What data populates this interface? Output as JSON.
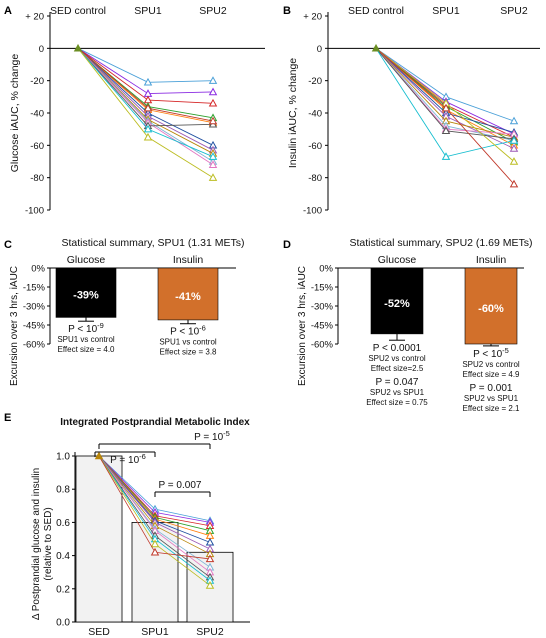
{
  "colors": {
    "glucose_bar": "#000000",
    "insulin_bar": "#d2702b",
    "sed_bar": "#f2f2f2",
    "axis": "#000000",
    "line_palette": [
      "#4aa0d8",
      "#8a2be2",
      "#d62728",
      "#2ca02c",
      "#ff7f0e",
      "#1f4fa0",
      "#9b59b6",
      "#b8860b",
      "#7fb3d5",
      "#e377c2",
      "#555555",
      "#17becf",
      "#bcbd22",
      "#c0392b"
    ]
  },
  "panels": {
    "A": {
      "letter": "A"
    },
    "B": {
      "letter": "B"
    },
    "C": {
      "letter": "C"
    },
    "D": {
      "letter": "D"
    },
    "E": {
      "letter": "E"
    }
  },
  "chart_data": [
    {
      "id": "A",
      "type": "line",
      "ylabel": "Glucose iAUC, % change",
      "categories": [
        "SED control",
        "SPU1",
        "SPU2"
      ],
      "ylim": [
        -100,
        20
      ],
      "yticks": [
        20,
        0,
        -20,
        -40,
        -60,
        -80,
        -100
      ],
      "ytick_labels": [
        "+ 20",
        "0",
        "-20",
        "-40",
        "-60",
        "-80",
        "-100"
      ],
      "series": [
        {
          "values": [
            0,
            -21,
            -20
          ]
        },
        {
          "values": [
            0,
            -28,
            -27
          ]
        },
        {
          "values": [
            0,
            -32,
            -34
          ]
        },
        {
          "values": [
            0,
            -36,
            -43
          ]
        },
        {
          "values": [
            0,
            -38,
            -46
          ]
        },
        {
          "values": [
            0,
            -40,
            -60
          ]
        },
        {
          "values": [
            0,
            -42,
            -63
          ]
        },
        {
          "values": [
            0,
            -44,
            -65
          ]
        },
        {
          "values": [
            0,
            -45,
            -70
          ]
        },
        {
          "values": [
            0,
            -46,
            -72
          ]
        },
        {
          "values": [
            0,
            -48,
            -47
          ]
        },
        {
          "values": [
            0,
            -50,
            -67
          ]
        },
        {
          "values": [
            0,
            -55,
            -80
          ]
        },
        {
          "values": [
            0,
            -37,
            -45
          ]
        }
      ]
    },
    {
      "id": "B",
      "type": "line",
      "ylabel": "Insulin iAUC, % change",
      "categories": [
        "SED control",
        "SPU1",
        "SPU2"
      ],
      "ylim": [
        -100,
        20
      ],
      "yticks": [
        20,
        0,
        -20,
        -40,
        -60,
        -80,
        -100
      ],
      "ytick_labels": [
        "+ 20",
        "0",
        "-20",
        "-40",
        "-60",
        "-80",
        "-100"
      ],
      "series": [
        {
          "values": [
            0,
            -30,
            -45
          ]
        },
        {
          "values": [
            0,
            -33,
            -53
          ]
        },
        {
          "values": [
            0,
            -35,
            -55
          ]
        },
        {
          "values": [
            0,
            -36,
            -58
          ]
        },
        {
          "values": [
            0,
            -38,
            -60
          ]
        },
        {
          "values": [
            0,
            -40,
            -52
          ]
        },
        {
          "values": [
            0,
            -42,
            -62
          ]
        },
        {
          "values": [
            0,
            -45,
            -55
          ]
        },
        {
          "values": [
            0,
            -48,
            -57
          ]
        },
        {
          "values": [
            0,
            -50,
            -53
          ]
        },
        {
          "values": [
            0,
            -51,
            -56
          ]
        },
        {
          "values": [
            0,
            -67,
            -57
          ]
        },
        {
          "values": [
            0,
            -34,
            -70
          ]
        },
        {
          "values": [
            0,
            -37,
            -84
          ]
        }
      ]
    },
    {
      "id": "C",
      "type": "bar",
      "title": "Statistical summary, SPU1 (1.31 METs)",
      "ylabel": "Excursion over 3 hrs, iAUC",
      "ylim": [
        -60,
        0
      ],
      "yticks": [
        0,
        -15,
        -30,
        -45,
        -60
      ],
      "ytick_labels": [
        "0%",
        "-15%",
        "-30%",
        "-45%",
        "-60%"
      ],
      "categories": [
        "Glucose",
        "Insulin"
      ],
      "values": [
        -39,
        -41
      ],
      "errors": [
        3,
        3
      ],
      "bar_labels": [
        "-39%",
        "-41%"
      ],
      "stats": [
        [
          "P < 10",
          "-9",
          "SPU1 vs control",
          "Effect size = 4.0"
        ],
        [
          "P < 10",
          "-6",
          "SPU1 vs control",
          "Effect size = 3.8"
        ]
      ]
    },
    {
      "id": "D",
      "type": "bar",
      "title": "Statistical summary, SPU2 (1.69 METs)",
      "ylabel": "Excursion over 3 hrs, iAUC",
      "ylim": [
        -60,
        0
      ],
      "yticks": [
        0,
        -15,
        -30,
        -45,
        -60
      ],
      "ytick_labels": [
        "0%",
        "-15%",
        "-30%",
        "-45%",
        "-60%"
      ],
      "categories": [
        "Glucose",
        "Insulin"
      ],
      "values": [
        -52,
        -60
      ],
      "errors": [
        5,
        1.5
      ],
      "bar_labels": [
        "-52%",
        "-60%"
      ],
      "stats": [
        [
          "P < 0.0001",
          "",
          "SPU2 vs control",
          "Effect size=2.5",
          "P = 0.047",
          "SPU2 vs SPU1",
          "Effect size = 0.75"
        ],
        [
          "P < 10",
          "-5",
          "SPU2 vs control",
          "Effect size = 4.9",
          "P = 0.001",
          "SPU2 vs SPU1",
          "Effect size = 2.1"
        ]
      ]
    },
    {
      "id": "E",
      "type": "bar",
      "title": "Integrated Postprandial Metabolic Index",
      "ylabel": "Δ Postprandial glucose and insulin",
      "ylabel2": "(relative to SED)",
      "categories": [
        "SED",
        "SPU1",
        "SPU2"
      ],
      "values": [
        1.0,
        0.6,
        0.42
      ],
      "ylim": [
        0,
        1.0
      ],
      "yticks": [
        0,
        0.2,
        0.4,
        0.6,
        0.8,
        1.0
      ],
      "ytick_labels": [
        "0.0",
        "0.2",
        "0.4",
        "0.6",
        "0.8",
        "1.0"
      ],
      "series": [
        {
          "values": [
            1.0,
            0.68,
            0.61
          ]
        },
        {
          "values": [
            1.0,
            0.66,
            0.6
          ]
        },
        {
          "values": [
            1.0,
            0.64,
            0.58
          ]
        },
        {
          "values": [
            1.0,
            0.63,
            0.55
          ]
        },
        {
          "values": [
            1.0,
            0.62,
            0.52
          ]
        },
        {
          "values": [
            1.0,
            0.61,
            0.48
          ]
        },
        {
          "values": [
            1.0,
            0.6,
            0.44
          ]
        },
        {
          "values": [
            1.0,
            0.58,
            0.41
          ]
        },
        {
          "values": [
            1.0,
            0.56,
            0.33
          ]
        },
        {
          "values": [
            1.0,
            0.55,
            0.3
          ]
        },
        {
          "values": [
            1.0,
            0.52,
            0.27
          ]
        },
        {
          "values": [
            1.0,
            0.5,
            0.25
          ]
        },
        {
          "values": [
            1.0,
            0.47,
            0.22
          ]
        },
        {
          "values": [
            1.0,
            0.42,
            0.38
          ]
        }
      ],
      "brackets": [
        {
          "from": 0,
          "to": 1,
          "label_base": "P = 10",
          "label_exp": "-6"
        },
        {
          "from": 0,
          "to": 2,
          "label_base": "P = 10",
          "label_exp": "-5"
        },
        {
          "from": 1,
          "to": 2,
          "label_base": "P = 0.007",
          "label_exp": ""
        }
      ]
    }
  ]
}
